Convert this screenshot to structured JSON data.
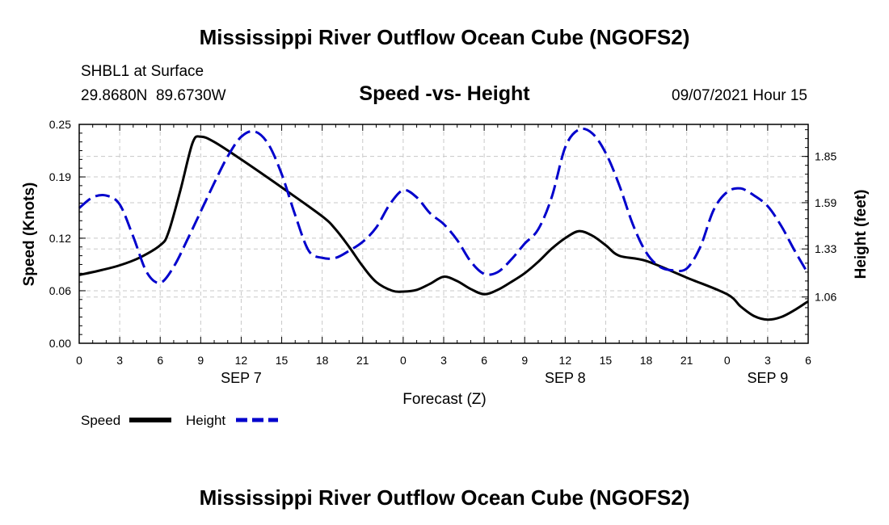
{
  "page": {
    "title_top": "Mississippi River Outflow Ocean Cube (NGOFS2)",
    "title_bottom": "Mississippi River Outflow Ocean Cube (NGOFS2)",
    "station": "SHBL1 at Surface",
    "coords": "29.8680N  89.6730W",
    "subtitle": "Speed -vs- Height",
    "datetime": "09/07/2021 Hour 15"
  },
  "chart_data": {
    "type": "line",
    "title": "Speed -vs- Height",
    "xlabel": "Forecast (Z)",
    "ylabel_left": "Speed (Knots)",
    "ylabel_right": "Height (feet)",
    "x_unit": "hours since 00Z Sep 7",
    "xlim": [
      0,
      54
    ],
    "x_ticks": [
      0,
      3,
      6,
      9,
      12,
      15,
      18,
      21,
      24,
      27,
      30,
      33,
      36,
      39,
      42,
      45,
      48,
      51,
      54
    ],
    "x_tick_labels": [
      "0",
      "3",
      "6",
      "9",
      "12",
      "15",
      "18",
      "21",
      "0",
      "3",
      "6",
      "9",
      "12",
      "15",
      "18",
      "21",
      "0",
      "3",
      "6"
    ],
    "date_labels": [
      {
        "label": "SEP 7",
        "x": 12
      },
      {
        "label": "SEP 8",
        "x": 36
      },
      {
        "label": "SEP 9",
        "x": 51
      }
    ],
    "y_left": {
      "lim": [
        0.0,
        0.25
      ],
      "ticks": [
        0.0,
        0.06,
        0.12,
        0.19,
        0.25
      ],
      "tick_labels": [
        "0.00",
        "0.06",
        "0.12",
        "0.19",
        "0.25"
      ]
    },
    "y_right": {
      "lim": [
        0.8,
        2.03
      ],
      "ticks": [
        1.06,
        1.33,
        1.59,
        1.85
      ],
      "tick_labels": [
        "1.06",
        "1.33",
        "1.59",
        "1.85"
      ]
    },
    "grid": true,
    "legend": {
      "placement": "bottom-left",
      "entries": [
        "Speed",
        "Height"
      ]
    },
    "series": [
      {
        "name": "Speed",
        "axis": "left",
        "color": "#000000",
        "dash": "solid",
        "x": [
          0,
          1.5,
          3,
          4.5,
          6,
          6.6,
          7.5,
          8.4,
          9,
          10,
          12,
          15,
          18,
          19,
          20,
          21,
          22,
          23.2,
          24,
          25,
          26,
          27,
          28,
          29,
          30,
          31,
          32,
          33,
          34,
          35,
          36,
          37,
          38,
          39,
          40,
          42,
          45,
          48,
          49,
          50,
          51,
          52,
          53,
          54
        ],
        "values": [
          0.078,
          0.083,
          0.089,
          0.098,
          0.112,
          0.126,
          0.175,
          0.229,
          0.236,
          0.23,
          0.21,
          0.178,
          0.145,
          0.13,
          0.11,
          0.088,
          0.07,
          0.06,
          0.059,
          0.061,
          0.068,
          0.076,
          0.071,
          0.062,
          0.056,
          0.061,
          0.07,
          0.08,
          0.093,
          0.108,
          0.12,
          0.128,
          0.123,
          0.112,
          0.1,
          0.094,
          0.075,
          0.056,
          0.042,
          0.031,
          0.027,
          0.03,
          0.038,
          0.048
        ]
      },
      {
        "name": "Height",
        "axis": "right",
        "color": "#0000cc",
        "dash": "dashed",
        "x": [
          0,
          1,
          2,
          3,
          4,
          5,
          6,
          7,
          8,
          9,
          10,
          11,
          12,
          13,
          14,
          15,
          16,
          17,
          18,
          19,
          20,
          21,
          22,
          23,
          24,
          25,
          26,
          27,
          28,
          29,
          30,
          31,
          32,
          33,
          34,
          35,
          36,
          37,
          38,
          39,
          40,
          41,
          42,
          43,
          44,
          45,
          46,
          47,
          48,
          49,
          50,
          51,
          52,
          53,
          54
        ],
        "values": [
          1.56,
          1.62,
          1.63,
          1.58,
          1.4,
          1.2,
          1.14,
          1.23,
          1.38,
          1.54,
          1.7,
          1.85,
          1.96,
          1.99,
          1.92,
          1.75,
          1.52,
          1.32,
          1.28,
          1.28,
          1.32,
          1.37,
          1.45,
          1.58,
          1.66,
          1.62,
          1.53,
          1.47,
          1.38,
          1.26,
          1.19,
          1.2,
          1.27,
          1.36,
          1.44,
          1.62,
          1.9,
          2.0,
          1.98,
          1.87,
          1.69,
          1.47,
          1.31,
          1.23,
          1.21,
          1.22,
          1.34,
          1.55,
          1.65,
          1.67,
          1.63,
          1.57,
          1.46,
          1.32,
          1.19
        ]
      }
    ]
  }
}
